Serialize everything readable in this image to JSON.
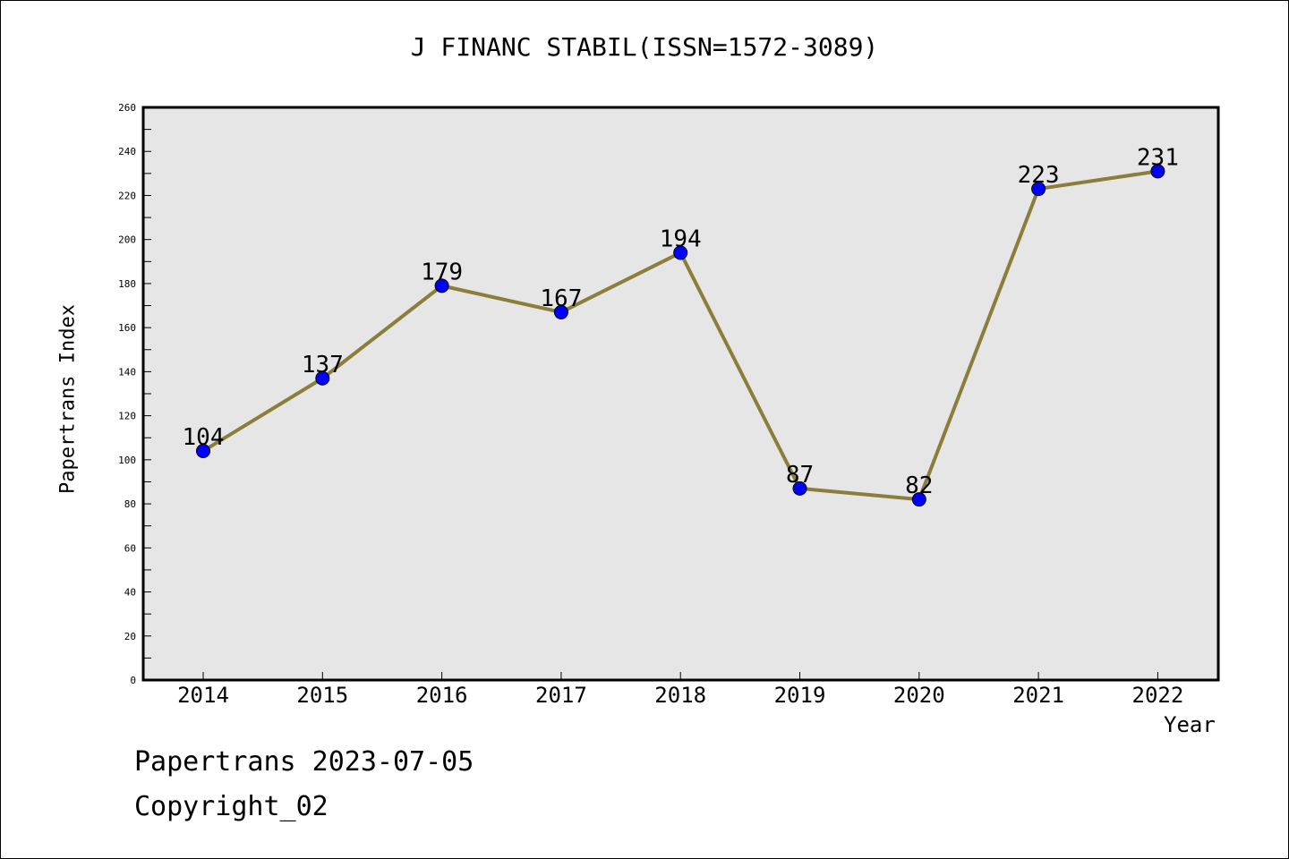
{
  "chart_data": {
    "type": "line",
    "title": "J FINANC STABIL(ISSN=1572-3089)",
    "xlabel": "Year",
    "ylabel": "Papertrans Index",
    "categories": [
      "2014",
      "2015",
      "2016",
      "2017",
      "2018",
      "2019",
      "2020",
      "2021",
      "2022"
    ],
    "series": [
      {
        "values": [
          104,
          137,
          179,
          167,
          194,
          87,
          82,
          223,
          231
        ]
      }
    ],
    "ylim": [
      0,
      260
    ],
    "yticks": [
      0,
      20,
      40,
      60,
      80,
      100,
      120,
      140,
      160,
      180,
      200,
      220,
      240,
      260
    ],
    "grid": false,
    "line_color": "#8B7D3A",
    "marker_color": "#0000FF",
    "plot_background": "#E6E6E6"
  },
  "footer": {
    "line1": "Papertrans 2023-07-05",
    "line2": "Copyright_02"
  }
}
